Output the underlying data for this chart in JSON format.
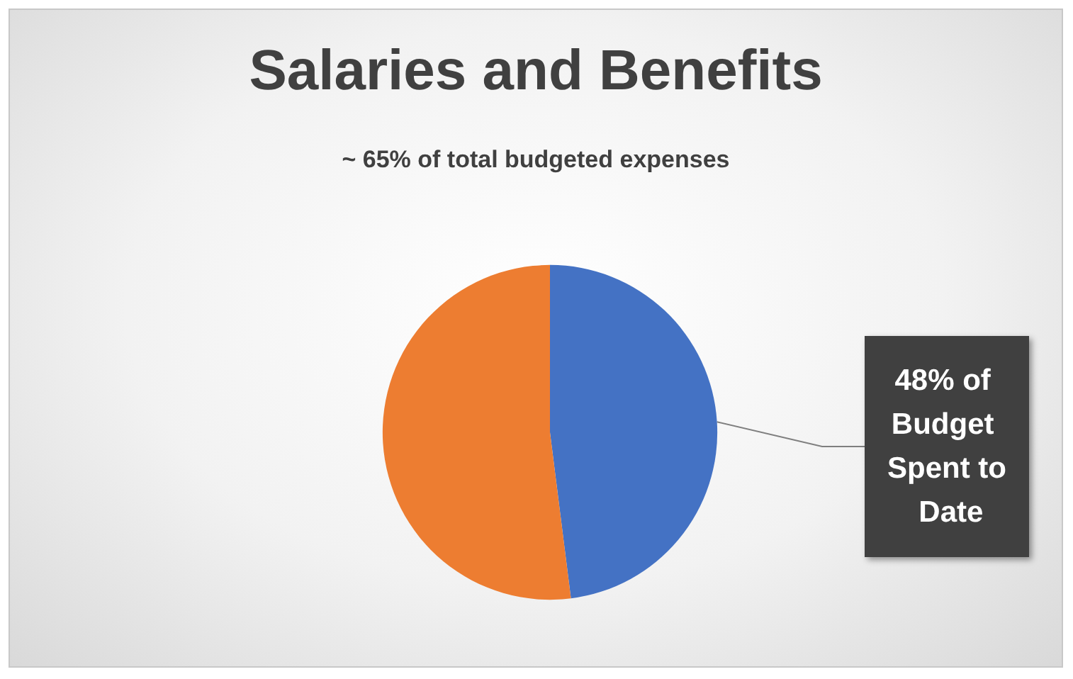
{
  "chart_data": {
    "type": "pie",
    "title": "Salaries and Benefits",
    "subtitle": "~ 65% of total budgeted expenses",
    "categories": [
      null,
      null
    ],
    "values": [
      48,
      52
    ],
    "colors": [
      "#4472c4",
      "#ed7d31"
    ],
    "value_labels": [
      "48% of Budget Spent to Date",
      null
    ]
  }
}
